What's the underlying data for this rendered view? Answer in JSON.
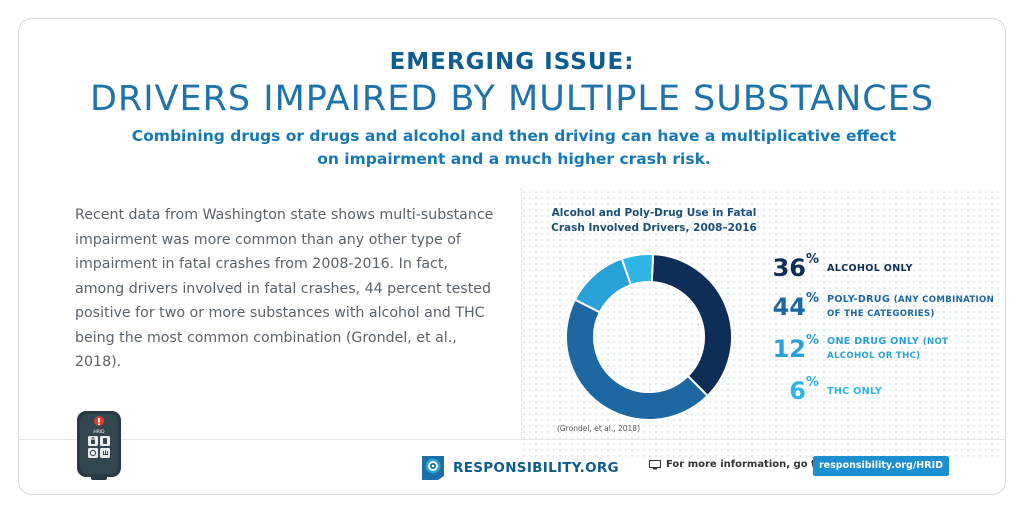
{
  "header": {
    "kicker": "EMERGING ISSUE:",
    "title": "DRIVERS IMPAIRED BY MULTIPLE SUBSTANCES",
    "subtitle": "Combining drugs or drugs and alcohol and then driving can have a multiplicative effect on impairment and a much higher crash risk."
  },
  "body": {
    "text": "Recent data from Washington state shows multi-substance impairment was more common than any other type of impairment in fatal crashes from 2008-2016. In fact, among drivers involved in fatal crashes, 44 percent tested positive for two or more substances with alcohol and THC being the most common combination (Grondel, et al., 2018)."
  },
  "chart_data": {
    "type": "pie",
    "title": "Alcohol and Poly-Drug Use in Fatal Crash Involved Drivers, 2008–2016",
    "categories": [
      "ALCOHOL ONLY",
      "POLY-DRUG",
      "ONE DRUG ONLY",
      "THC ONLY"
    ],
    "values": [
      36,
      44,
      12,
      6
    ],
    "notes": [
      "",
      "(ANY COMBINATION OF THE CATEGORIES)",
      "(NOT ALCOHOL OR THC)",
      ""
    ],
    "colors": [
      "#0f2e57",
      "#1d68a3",
      "#2aa1d6",
      "#2fb4e6"
    ],
    "source": "(Grondel, et al., 2018)"
  },
  "remote": {
    "label": "HRID",
    "icons": [
      "alert-icon",
      "lock-icon",
      "phone-icon",
      "refresh-icon",
      "hand-icon"
    ]
  },
  "footer": {
    "logo_text": "RESPONSIBILITY.ORG",
    "more_info": "For more information, go to",
    "url_button": "responsibility.org/HRID"
  }
}
